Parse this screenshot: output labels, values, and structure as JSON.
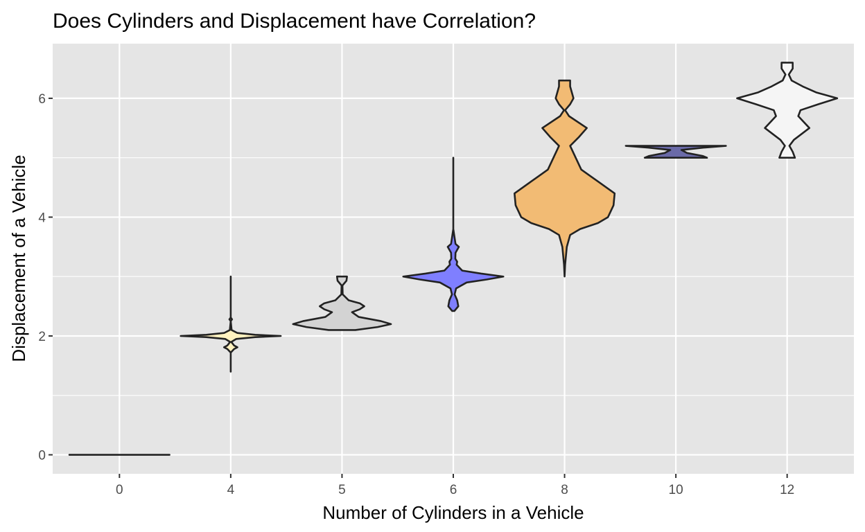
{
  "chart_data": {
    "type": "violin",
    "title": "Does Cylinders and Displacement have Correlation?",
    "xlabel": "Number of Cylinders in a Vehicle",
    "ylabel": "Displacement of a Vehicle",
    "categories": [
      "0",
      "4",
      "5",
      "6",
      "8",
      "10",
      "12"
    ],
    "yticks": [
      0,
      2,
      4,
      6
    ],
    "ylim": [
      -0.32,
      6.92
    ],
    "grid": true,
    "background": "#e5e5e5",
    "outline_color": "#222222",
    "groups": [
      {
        "category": "0",
        "fill": "#f0f0f0",
        "opacity": 1.0,
        "profile": [
          [
            0.0,
            0.45
          ],
          [
            0.0,
            0.45
          ]
        ]
      },
      {
        "category": "4",
        "fill": "#fff2c0",
        "opacity": 1.0,
        "profile": [
          [
            1.4,
            0.0
          ],
          [
            1.72,
            0.0
          ],
          [
            1.78,
            0.03
          ],
          [
            1.81,
            0.06
          ],
          [
            1.84,
            0.03
          ],
          [
            1.9,
            0.005
          ],
          [
            1.95,
            0.05
          ],
          [
            1.98,
            0.22
          ],
          [
            2.0,
            0.45
          ],
          [
            2.02,
            0.22
          ],
          [
            2.05,
            0.06
          ],
          [
            2.1,
            0.008
          ],
          [
            2.25,
            0.0
          ],
          [
            2.28,
            0.012
          ],
          [
            2.31,
            0.0
          ],
          [
            3.0,
            0.0
          ]
        ]
      },
      {
        "category": "5",
        "fill": "#d3d3d3",
        "opacity": 1.0,
        "profile": [
          [
            2.1,
            0.12
          ],
          [
            2.15,
            0.32
          ],
          [
            2.2,
            0.44
          ],
          [
            2.25,
            0.35
          ],
          [
            2.32,
            0.15
          ],
          [
            2.4,
            0.09
          ],
          [
            2.45,
            0.16
          ],
          [
            2.5,
            0.2
          ],
          [
            2.55,
            0.16
          ],
          [
            2.6,
            0.06
          ],
          [
            2.7,
            0.006
          ],
          [
            2.85,
            0.004
          ],
          [
            2.93,
            0.04
          ],
          [
            3.0,
            0.045
          ]
        ]
      },
      {
        "category": "6",
        "fill": "#7f7fff",
        "opacity": 1.0,
        "profile": [
          [
            2.42,
            0.01
          ],
          [
            2.5,
            0.045
          ],
          [
            2.6,
            0.035
          ],
          [
            2.7,
            0.012
          ],
          [
            2.8,
            0.025
          ],
          [
            2.9,
            0.12
          ],
          [
            2.95,
            0.3
          ],
          [
            3.0,
            0.45
          ],
          [
            3.05,
            0.25
          ],
          [
            3.1,
            0.08
          ],
          [
            3.2,
            0.03
          ],
          [
            3.25,
            0.035
          ],
          [
            3.3,
            0.018
          ],
          [
            3.4,
            0.02
          ],
          [
            3.5,
            0.05
          ],
          [
            3.55,
            0.02
          ],
          [
            3.8,
            0.0
          ],
          [
            5.0,
            0.0
          ]
        ]
      },
      {
        "category": "8",
        "fill": "#f2bb74",
        "opacity": 1.0,
        "profile": [
          [
            3.0,
            0.0
          ],
          [
            3.2,
            0.005
          ],
          [
            3.5,
            0.02
          ],
          [
            3.7,
            0.05
          ],
          [
            3.8,
            0.14
          ],
          [
            3.9,
            0.3
          ],
          [
            4.0,
            0.39
          ],
          [
            4.2,
            0.44
          ],
          [
            4.4,
            0.45
          ],
          [
            4.6,
            0.3
          ],
          [
            4.8,
            0.15
          ],
          [
            5.0,
            0.1
          ],
          [
            5.2,
            0.05
          ],
          [
            5.35,
            0.13
          ],
          [
            5.5,
            0.2
          ],
          [
            5.7,
            0.04
          ],
          [
            5.8,
            0.005
          ],
          [
            5.9,
            0.05
          ],
          [
            6.0,
            0.08
          ],
          [
            6.2,
            0.05
          ],
          [
            6.3,
            0.05
          ]
        ]
      },
      {
        "category": "10",
        "fill": "#6a6aa8",
        "opacity": 1.0,
        "profile": [
          [
            5.0,
            0.28
          ],
          [
            5.03,
            0.24
          ],
          [
            5.08,
            0.1
          ],
          [
            5.13,
            0.05
          ],
          [
            5.17,
            0.25
          ],
          [
            5.2,
            0.45
          ]
        ]
      },
      {
        "category": "12",
        "fill": "#f5f5f5",
        "opacity": 1.0,
        "profile": [
          [
            5.0,
            0.07
          ],
          [
            5.1,
            0.05
          ],
          [
            5.2,
            0.02
          ],
          [
            5.3,
            0.06
          ],
          [
            5.5,
            0.2
          ],
          [
            5.7,
            0.1
          ],
          [
            5.8,
            0.12
          ],
          [
            5.9,
            0.28
          ],
          [
            6.0,
            0.45
          ],
          [
            6.1,
            0.26
          ],
          [
            6.2,
            0.14
          ],
          [
            6.3,
            0.04
          ],
          [
            6.4,
            0.015
          ],
          [
            6.5,
            0.05
          ],
          [
            6.6,
            0.05
          ]
        ]
      }
    ]
  }
}
